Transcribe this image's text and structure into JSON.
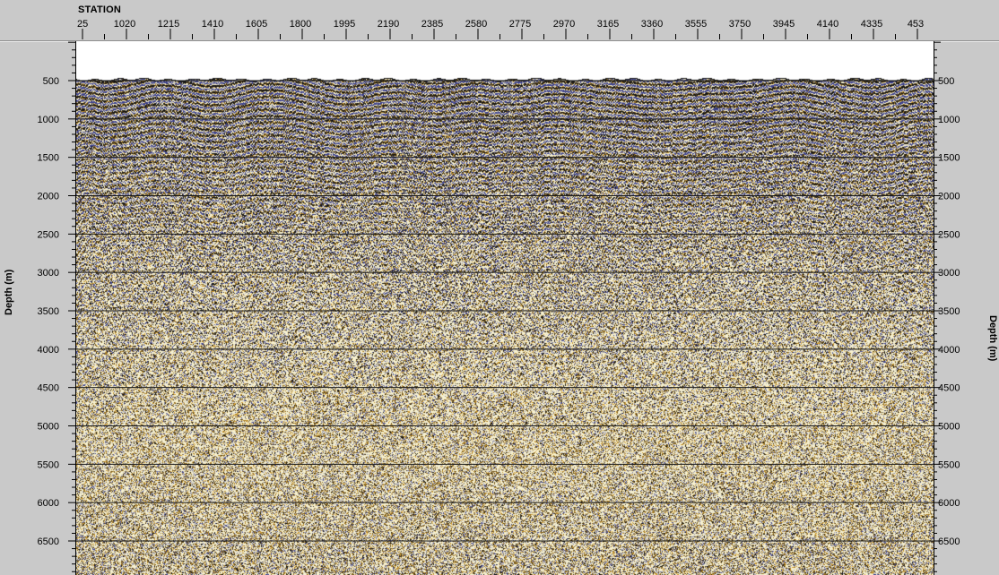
{
  "header": {
    "station_title": "STATION",
    "station_ticks": [
      "25",
      "1020",
      "1215",
      "1410",
      "1605",
      "1800",
      "1995",
      "2190",
      "2385",
      "2580",
      "2775",
      "2970",
      "3165",
      "3360",
      "3555",
      "3750",
      "3945",
      "4140",
      "4335",
      "453"
    ]
  },
  "axes": {
    "left_label": "Depth (m)",
    "right_label": "Depth (m)",
    "depth_ticks": [
      500,
      1000,
      1500,
      2000,
      2500,
      3000,
      3500,
      4000,
      4500,
      5000,
      5500,
      6000,
      6500
    ]
  },
  "colors": {
    "frame": "#c9c9c9",
    "paper": "#f7f1d0",
    "positive_fill": "#e0a834",
    "peak": "#141414",
    "trough": "#3a3f8c",
    "gridline": "#1a1a1a"
  }
}
